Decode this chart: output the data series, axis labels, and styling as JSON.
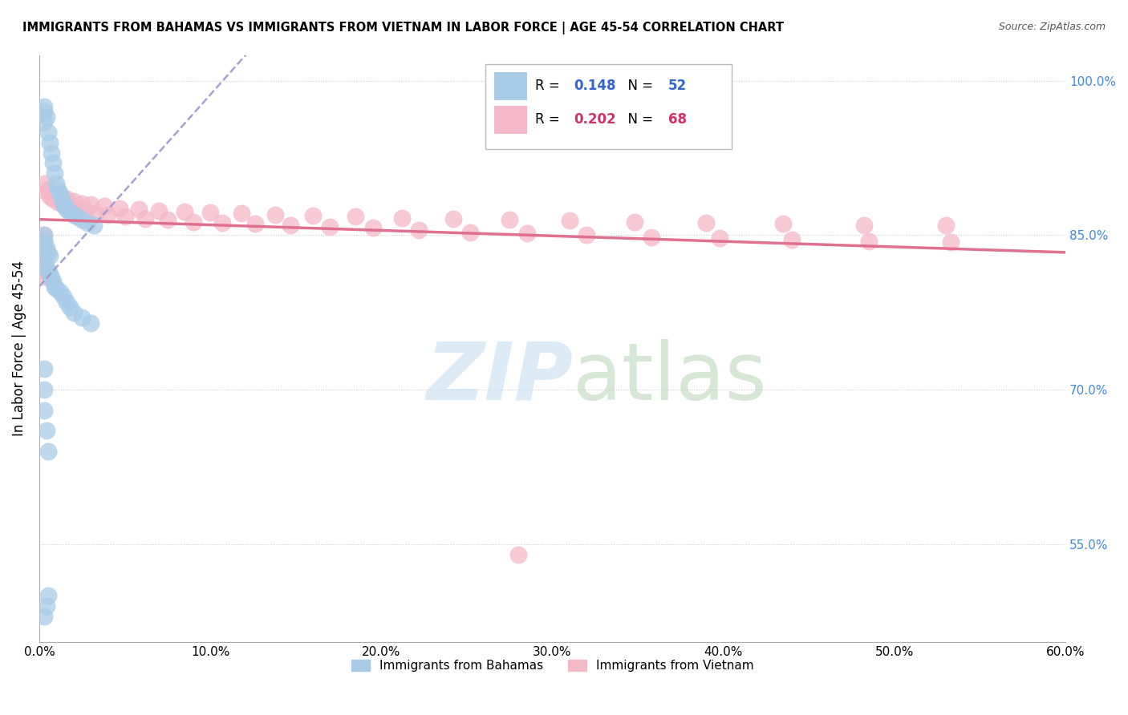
{
  "title": "IMMIGRANTS FROM BAHAMAS VS IMMIGRANTS FROM VIETNAM IN LABOR FORCE | AGE 45-54 CORRELATION CHART",
  "source": "Source: ZipAtlas.com",
  "ylabel": "In Labor Force | Age 45-54",
  "legend_label1": "Immigrants from Bahamas",
  "legend_label2": "Immigrants from Vietnam",
  "R1": 0.148,
  "N1": 52,
  "R2": 0.202,
  "N2": 68,
  "xlim": [
    0.0,
    0.6
  ],
  "ylim": [
    0.455,
    1.025
  ],
  "yticks": [
    0.55,
    0.7,
    0.85,
    1.0
  ],
  "ytick_labels": [
    "55.0%",
    "70.0%",
    "85.0%",
    "100.0%"
  ],
  "xticks": [
    0.0,
    0.1,
    0.2,
    0.3,
    0.4,
    0.5,
    0.6
  ],
  "xtick_labels": [
    "0.0%",
    "10.0%",
    "20.0%",
    "30.0%",
    "40.0%",
    "50.0%",
    "60.0%"
  ],
  "color_blue": "#a8cce8",
  "color_blue_dark": "#4472c4",
  "color_pink": "#f4b8c8",
  "color_pink_line": "#e07090",
  "color_blue_line_dash": "#8888bb",
  "watermark_zip_color": "#c8dff0",
  "watermark_atlas_color": "#b8d4b8",
  "bahamas_x": [
    0.003,
    0.003,
    0.004,
    0.003,
    0.005,
    0.006,
    0.007,
    0.008,
    0.009,
    0.01,
    0.011,
    0.012,
    0.013,
    0.014,
    0.015,
    0.016,
    0.018,
    0.02,
    0.022,
    0.025,
    0.028,
    0.032,
    0.003,
    0.003,
    0.003,
    0.004,
    0.004,
    0.005,
    0.006,
    0.003,
    0.004,
    0.005,
    0.006,
    0.007,
    0.008,
    0.009,
    0.01,
    0.012,
    0.014,
    0.016,
    0.018,
    0.02,
    0.025,
    0.03,
    0.003,
    0.003,
    0.003,
    0.004,
    0.005,
    0.003,
    0.004,
    0.005
  ],
  "bahamas_y": [
    0.975,
    0.97,
    0.965,
    0.96,
    0.95,
    0.94,
    0.93,
    0.92,
    0.91,
    0.9,
    0.895,
    0.89,
    0.885,
    0.88,
    0.878,
    0.875,
    0.872,
    0.87,
    0.868,
    0.865,
    0.862,
    0.86,
    0.85,
    0.845,
    0.84,
    0.838,
    0.835,
    0.832,
    0.83,
    0.82,
    0.818,
    0.815,
    0.812,
    0.808,
    0.805,
    0.8,
    0.798,
    0.795,
    0.79,
    0.785,
    0.78,
    0.775,
    0.77,
    0.765,
    0.72,
    0.7,
    0.68,
    0.66,
    0.64,
    0.48,
    0.49,
    0.5
  ],
  "vietnam_x": [
    0.003,
    0.005,
    0.007,
    0.01,
    0.013,
    0.016,
    0.02,
    0.025,
    0.03,
    0.038,
    0.047,
    0.058,
    0.07,
    0.085,
    0.1,
    0.118,
    0.138,
    0.16,
    0.185,
    0.212,
    0.242,
    0.275,
    0.31,
    0.348,
    0.39,
    0.435,
    0.482,
    0.53,
    0.004,
    0.006,
    0.008,
    0.011,
    0.014,
    0.018,
    0.022,
    0.027,
    0.033,
    0.04,
    0.05,
    0.062,
    0.075,
    0.09,
    0.107,
    0.126,
    0.147,
    0.17,
    0.195,
    0.222,
    0.252,
    0.285,
    0.32,
    0.358,
    0.398,
    0.44,
    0.485,
    0.533,
    0.28,
    0.003,
    0.003,
    0.003,
    0.003,
    0.003,
    0.003,
    0.003,
    0.003,
    0.003,
    0.003,
    0.003
  ],
  "vietnam_y": [
    0.9,
    0.895,
    0.89,
    0.888,
    0.886,
    0.885,
    0.883,
    0.881,
    0.88,
    0.878,
    0.876,
    0.875,
    0.874,
    0.873,
    0.872,
    0.871,
    0.87,
    0.869,
    0.868,
    0.867,
    0.866,
    0.865,
    0.864,
    0.863,
    0.862,
    0.861,
    0.86,
    0.86,
    0.892,
    0.888,
    0.885,
    0.882,
    0.879,
    0.877,
    0.875,
    0.873,
    0.871,
    0.87,
    0.868,
    0.866,
    0.865,
    0.863,
    0.862,
    0.861,
    0.86,
    0.858,
    0.857,
    0.855,
    0.853,
    0.852,
    0.85,
    0.848,
    0.847,
    0.846,
    0.844,
    0.843,
    0.54,
    0.84,
    0.835,
    0.83,
    0.825,
    0.82,
    0.815,
    0.81,
    0.85,
    0.845,
    0.838,
    0.832
  ]
}
